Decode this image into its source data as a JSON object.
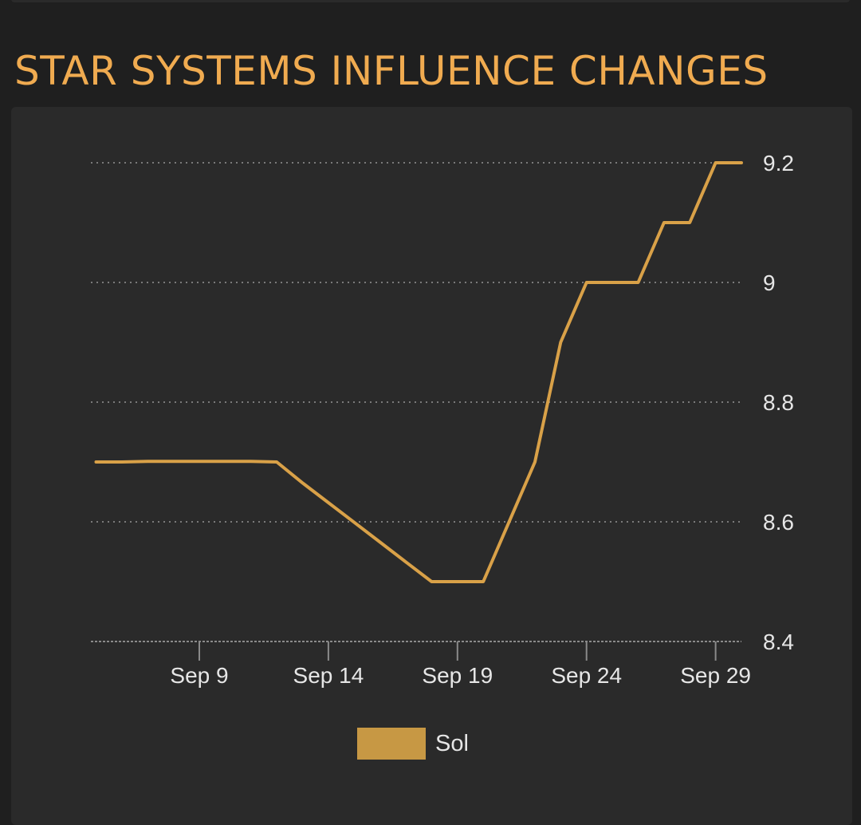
{
  "section": {
    "title": "STAR SYSTEMS INFLUENCE CHANGES"
  },
  "chart_data": {
    "type": "line",
    "title": "",
    "xlabel": "",
    "ylabel": "",
    "x": [
      "Sep 5",
      "Sep 6",
      "Sep 7",
      "Sep 8",
      "Sep 9",
      "Sep 10",
      "Sep 11",
      "Sep 12",
      "Sep 13",
      "Sep 14",
      "Sep 15",
      "Sep 16",
      "Sep 17",
      "Sep 18",
      "Sep 19",
      "Sep 20",
      "Sep 21",
      "Sep 22",
      "Sep 23",
      "Sep 24",
      "Sep 25",
      "Sep 26",
      "Sep 27",
      "Sep 28",
      "Sep 29",
      "Sep 30"
    ],
    "x_tick_labels": [
      "Sep 9",
      "Sep 14",
      "Sep 19",
      "Sep 24",
      "Sep 29"
    ],
    "xlim": [
      "Sep 4.8",
      "Sep 30"
    ],
    "series": [
      {
        "name": "Sol",
        "color": "#d9a148",
        "values": [
          8.7,
          8.7,
          8.701,
          8.701,
          8.701,
          8.701,
          8.701,
          8.7,
          8.665,
          8.632,
          8.599,
          8.566,
          8.533,
          8.5,
          8.5,
          8.5,
          8.6,
          8.7,
          8.9,
          9.0,
          9.0,
          9.0,
          9.1,
          9.1,
          9.2,
          9.2
        ]
      }
    ],
    "y_ticks": [
      8.4,
      8.6,
      8.8,
      9,
      9.2
    ],
    "ylim": [
      8.4,
      9.2
    ],
    "grid": "horizontal-dotted",
    "legend": {
      "position": "bottom-center",
      "entries": [
        {
          "label": "Sol",
          "color": "#c79844"
        }
      ]
    },
    "y_axis_side": "right"
  }
}
